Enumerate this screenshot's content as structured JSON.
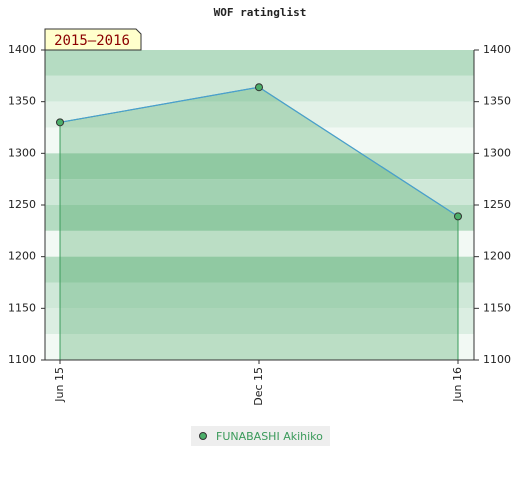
{
  "chart_data": {
    "type": "line",
    "title": "WOF ratinglist",
    "annotation": "2015–2016",
    "categories": [
      "Jun 15",
      "Dec 15",
      "Jun 16"
    ],
    "series": [
      {
        "name": "FUNABASHI Akihiko",
        "color": "#4a9fd0",
        "values": [
          1330,
          1364,
          1239
        ]
      }
    ],
    "ylim": [
      1100,
      1400
    ],
    "yticks": [
      1100,
      1150,
      1200,
      1250,
      1300,
      1350,
      1400
    ],
    "y2lim": [
      1100,
      1400
    ],
    "y2ticks": [
      1100,
      1150,
      1200,
      1250,
      1300,
      1350,
      1400
    ],
    "grid": false
  }
}
